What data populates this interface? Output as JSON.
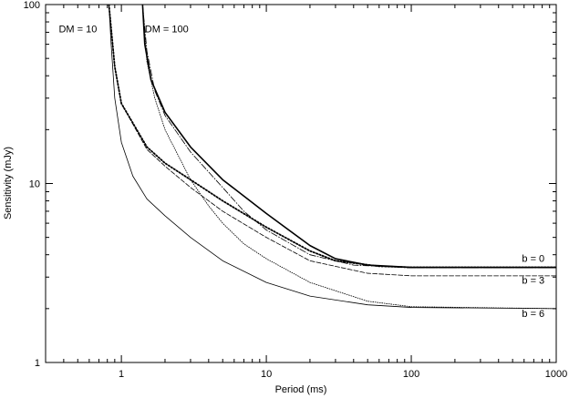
{
  "chart_data": {
    "type": "line",
    "title": "",
    "xlabel": "Period (ms)",
    "ylabel": "Sensitivity (mJy)",
    "xscale": "log",
    "yscale": "log",
    "xlim": [
      0.3,
      1000
    ],
    "ylim": [
      1,
      100
    ],
    "grid": false,
    "x_ticks": [
      {
        "value": 1,
        "label": "1"
      },
      {
        "value": 10,
        "label": "10"
      },
      {
        "value": 100,
        "label": "100"
      },
      {
        "value": 1000,
        "label": "1000"
      }
    ],
    "y_ticks": [
      {
        "value": 1,
        "label": "1"
      },
      {
        "value": 10,
        "label": "10"
      },
      {
        "value": 100,
        "label": "100"
      }
    ],
    "annotations": [
      {
        "text": "DM = 10",
        "x": 0.37,
        "y": 70
      },
      {
        "text": "DM = 100",
        "x": 1.45,
        "y": 70
      },
      {
        "text": "b = 0",
        "x": 580,
        "y": 3.65
      },
      {
        "text": "b = 3",
        "x": 580,
        "y": 2.75
      },
      {
        "text": "b = 6",
        "x": 580,
        "y": 1.8
      }
    ],
    "series": [
      {
        "style": "solid-thick",
        "color": "#000000",
        "points": [
          [
            1.4,
            100
          ],
          [
            1.45,
            60
          ],
          [
            1.6,
            38
          ],
          [
            2,
            25
          ],
          [
            3,
            16
          ],
          [
            5,
            10.5
          ],
          [
            10,
            6.8
          ],
          [
            20,
            4.5
          ],
          [
            30,
            3.8
          ],
          [
            50,
            3.5
          ],
          [
            100,
            3.4
          ],
          [
            1000,
            3.4
          ]
        ]
      },
      {
        "style": "dashdot",
        "color": "#000000",
        "points": [
          [
            1.4,
            100
          ],
          [
            1.5,
            55
          ],
          [
            1.7,
            33
          ],
          [
            2,
            24
          ],
          [
            3,
            15
          ],
          [
            5,
            9.5
          ],
          [
            7,
            7
          ],
          [
            10,
            5.5
          ],
          [
            20,
            4
          ],
          [
            40,
            3.5
          ],
          [
            100,
            3.38
          ],
          [
            1000,
            3.38
          ]
        ]
      },
      {
        "style": "dotted-thick",
        "color": "#000000",
        "points": [
          [
            0.82,
            100
          ],
          [
            0.9,
            45
          ],
          [
            1,
            28
          ],
          [
            1.5,
            16
          ],
          [
            2,
            13
          ],
          [
            3,
            10.5
          ],
          [
            5,
            8
          ],
          [
            10,
            5.7
          ],
          [
            20,
            4.2
          ],
          [
            30,
            3.7
          ],
          [
            60,
            3.45
          ],
          [
            100,
            3.4
          ],
          [
            1000,
            3.4
          ]
        ]
      },
      {
        "style": "dashed",
        "color": "#000000",
        "points": [
          [
            0.82,
            100
          ],
          [
            0.9,
            45
          ],
          [
            1,
            28
          ],
          [
            1.5,
            15.5
          ],
          [
            2,
            12.5
          ],
          [
            3,
            9.5
          ],
          [
            5,
            7
          ],
          [
            10,
            5
          ],
          [
            20,
            3.7
          ],
          [
            50,
            3.15
          ],
          [
            100,
            3.05
          ],
          [
            1000,
            3.05
          ]
        ]
      },
      {
        "style": "dotted-thin",
        "color": "#000000",
        "points": [
          [
            1.4,
            100
          ],
          [
            1.5,
            48
          ],
          [
            1.7,
            30
          ],
          [
            2,
            20
          ],
          [
            3,
            10.5
          ],
          [
            4,
            7.5
          ],
          [
            5,
            6
          ],
          [
            7,
            4.6
          ],
          [
            10,
            3.8
          ],
          [
            20,
            2.8
          ],
          [
            50,
            2.2
          ],
          [
            100,
            2.05
          ],
          [
            1000,
            2.0
          ]
        ]
      },
      {
        "style": "solid-thin",
        "color": "#000000",
        "points": [
          [
            0.82,
            100
          ],
          [
            0.85,
            60
          ],
          [
            0.9,
            30
          ],
          [
            1,
            17
          ],
          [
            1.2,
            11
          ],
          [
            1.5,
            8.2
          ],
          [
            2,
            6.6
          ],
          [
            3,
            5
          ],
          [
            5,
            3.7
          ],
          [
            10,
            2.8
          ],
          [
            20,
            2.35
          ],
          [
            50,
            2.1
          ],
          [
            100,
            2.03
          ],
          [
            1000,
            2.0
          ]
        ]
      }
    ]
  }
}
